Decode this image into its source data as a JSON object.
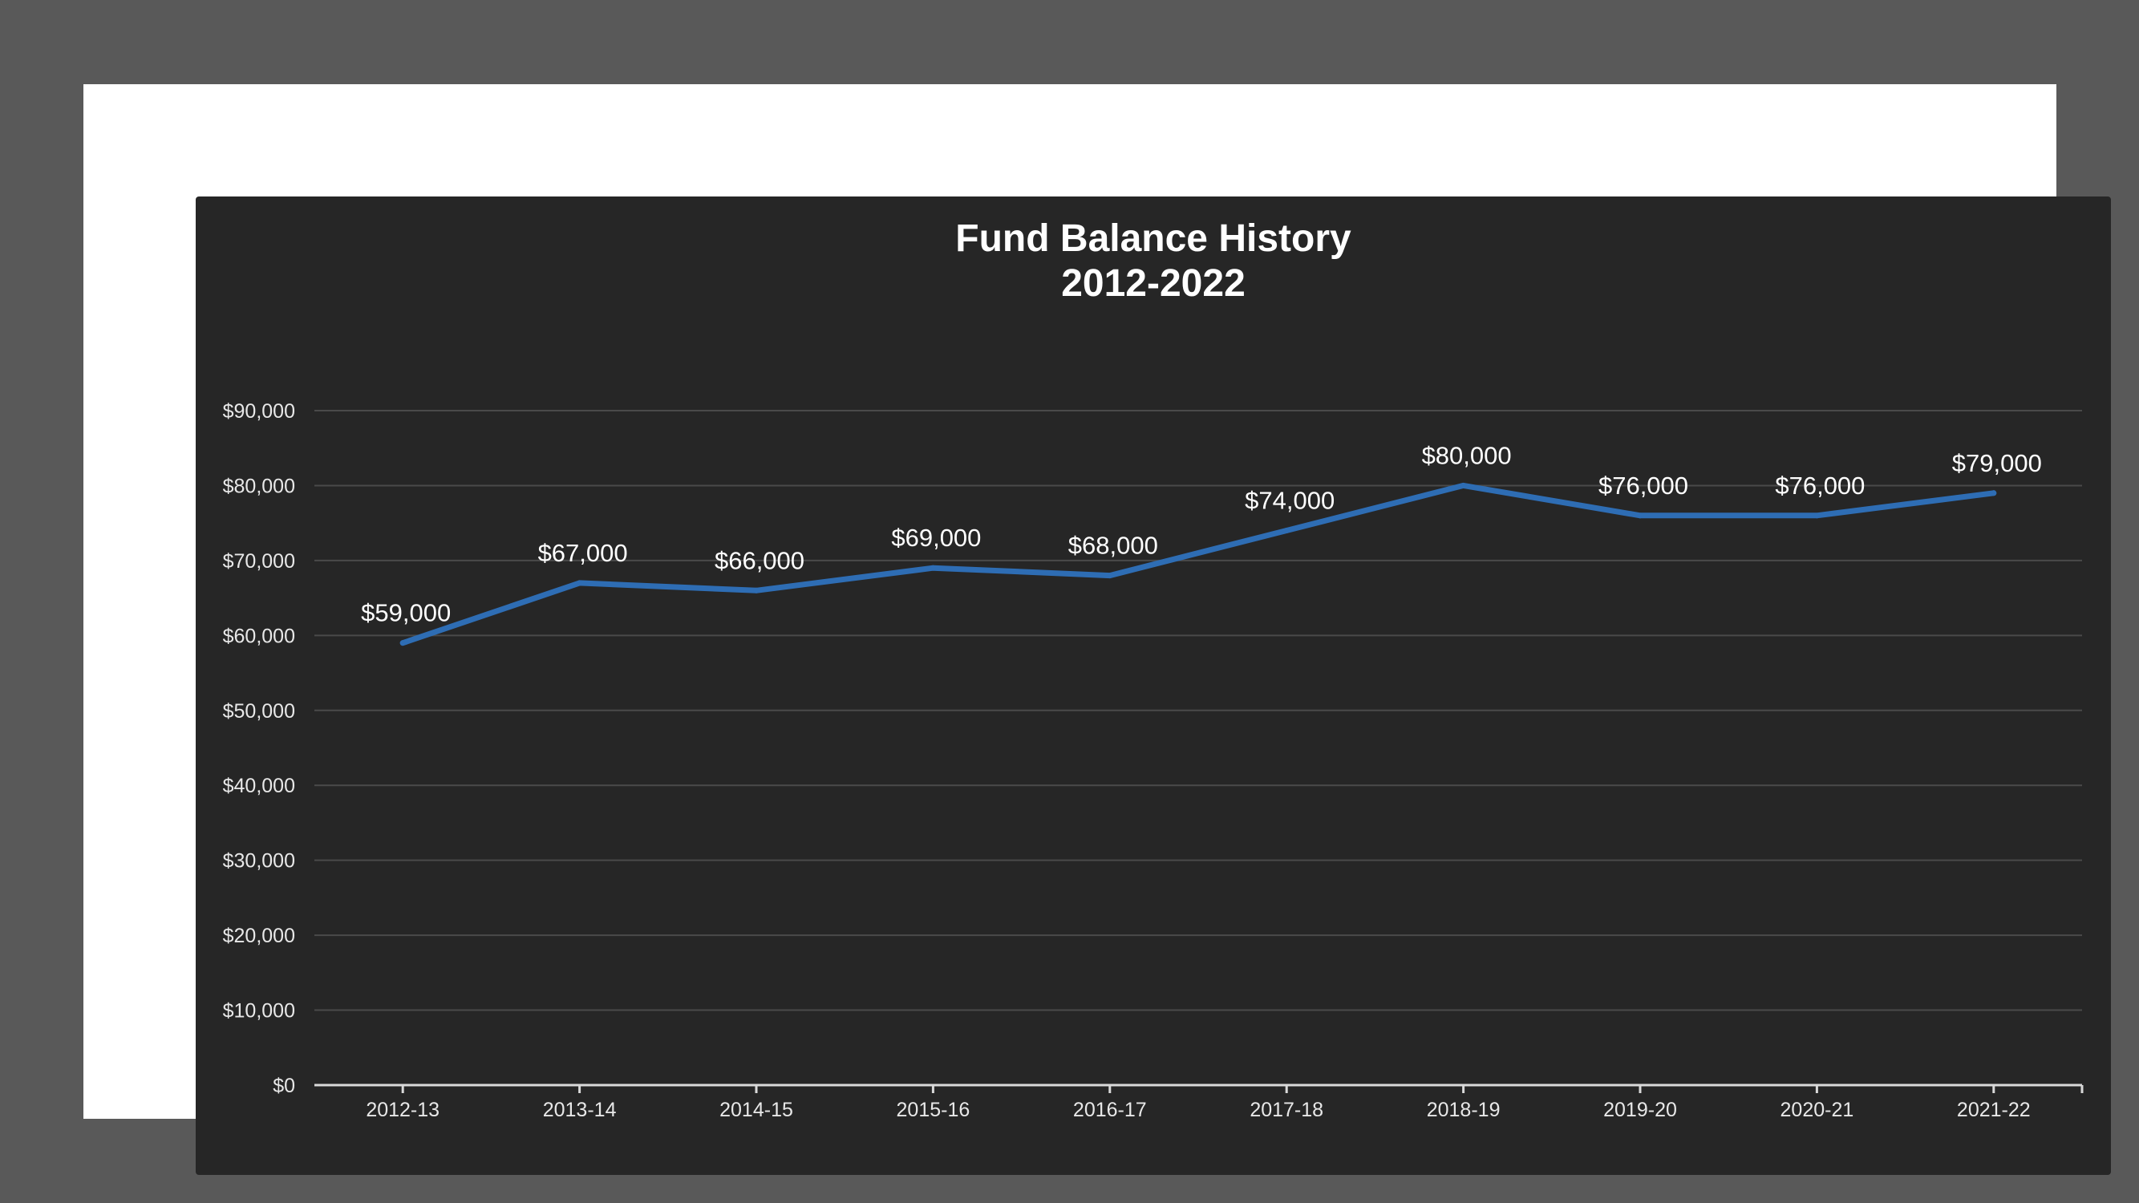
{
  "chart_data": {
    "type": "line",
    "title": "Fund Balance History",
    "subtitle": "2012-2022",
    "xlabel": "",
    "ylabel": "",
    "categories": [
      "2012-13",
      "2013-14",
      "2014-15",
      "2015-16",
      "2016-17",
      "2017-18",
      "2018-19",
      "2019-20",
      "2020-21",
      "2021-22"
    ],
    "series": [
      {
        "values": [
          59000,
          67000,
          66000,
          69000,
          68000,
          74000,
          80000,
          76000,
          76000,
          79000
        ]
      }
    ],
    "data_labels": [
      "$59,000",
      "$67,000",
      "$66,000",
      "$69,000",
      "$68,000",
      "$74,000",
      "$80,000",
      "$76,000",
      "$76,000",
      "$79,000"
    ],
    "ylim": [
      0,
      90000
    ],
    "yticks": [
      0,
      10000,
      20000,
      30000,
      40000,
      50000,
      60000,
      70000,
      80000,
      90000
    ],
    "ytick_labels": [
      "$0",
      "$10,000",
      "$20,000",
      "$30,000",
      "$40,000",
      "$50,000",
      "$60,000",
      "$70,000",
      "$80,000",
      "$90,000"
    ],
    "grid": true,
    "legend": "none",
    "colors": {
      "line": "#2e6db4",
      "panel": "#262626",
      "frame": "#ffffff",
      "page": "#595959",
      "grid": "#4a4a4a",
      "axis": "#d9d9d9",
      "text": "#ffffff"
    }
  }
}
